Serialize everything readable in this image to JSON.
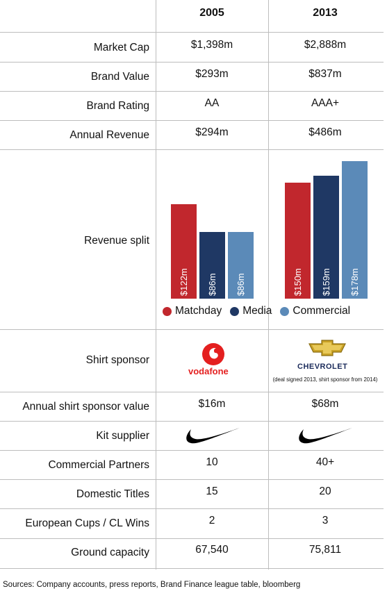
{
  "columns": [
    "2005",
    "2013"
  ],
  "rows": [
    {
      "label": "Market Cap",
      "v2005": "$1,398m",
      "v2013": "$2,888m"
    },
    {
      "label": "Brand Value",
      "v2005": "$293m",
      "v2013": "$837m"
    },
    {
      "label": "Brand Rating",
      "v2005": "AA",
      "v2013": "AAA+"
    },
    {
      "label": "Annual Revenue",
      "v2005": "$294m",
      "v2013": "$486m"
    }
  ],
  "revenue_split_label": "Revenue split",
  "sponsor": {
    "label": "Shirt sponsor",
    "v2005": "vodafone",
    "v2013": "CHEVROLET",
    "note2013": "(deal signed 2013, shirt sponsor from 2014)"
  },
  "rows2": [
    {
      "label": "Annual shirt sponsor value",
      "v2005": "$16m",
      "v2013": "$68m"
    },
    {
      "label": "Kit supplier",
      "v2005": "",
      "v2013": ""
    },
    {
      "label": "Commercial Partners",
      "v2005": "10",
      "v2013": "40+"
    },
    {
      "label": "Domestic Titles",
      "v2005": "15",
      "v2013": "20"
    },
    {
      "label": "European Cups / CL Wins",
      "v2005": "2",
      "v2013": "3"
    },
    {
      "label": "Ground capacity",
      "v2005": "67,540",
      "v2013": "75,811"
    }
  ],
  "sources": "Sources: Company accounts, press reports, Brand Finance league table, bloomberg",
  "icons": {
    "kit_2005": "nike-swoosh-icon",
    "kit_2013": "nike-swoosh-icon",
    "vodafone": "vodafone-logo-icon",
    "chevrolet": "chevrolet-bowtie-icon"
  },
  "colors": {
    "Matchday": "#c1272d",
    "Media": "#1f3864",
    "Commercial": "#5b8ab8"
  },
  "chart_data": {
    "type": "bar",
    "categories": [
      "2005",
      "2013"
    ],
    "series": [
      {
        "name": "Matchday",
        "values": [
          122,
          150
        ],
        "labels": [
          "$122m",
          "$150m"
        ]
      },
      {
        "name": "Media",
        "values": [
          86,
          159
        ],
        "labels": [
          "$86m",
          "$159m"
        ]
      },
      {
        "name": "Commercial",
        "values": [
          86,
          178
        ],
        "labels": [
          "$86m",
          "$178m"
        ]
      }
    ],
    "title": "",
    "xlabel": "",
    "ylabel": "",
    "ylim": [
      0,
      180
    ],
    "legend": "bottom"
  }
}
